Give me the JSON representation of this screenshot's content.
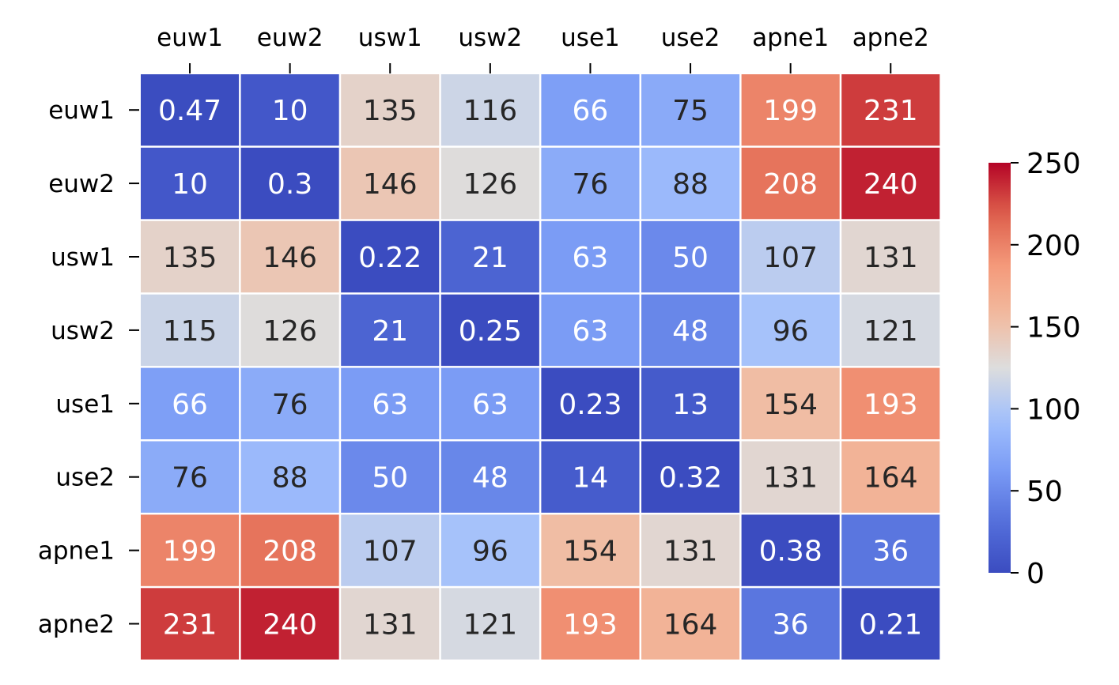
{
  "chart_data": {
    "type": "heatmap",
    "colormap": "coolwarm",
    "x_labels": [
      "euw1",
      "euw2",
      "usw1",
      "usw2",
      "use1",
      "use2",
      "apne1",
      "apne2"
    ],
    "y_labels": [
      "euw1",
      "euw2",
      "usw1",
      "usw2",
      "use1",
      "use2",
      "apne1",
      "apne2"
    ],
    "x_labels_position": "top",
    "values": [
      [
        0.47,
        10,
        135,
        116,
        66,
        75,
        199,
        231
      ],
      [
        10,
        0.3,
        146,
        126,
        76,
        88,
        208,
        240
      ],
      [
        135,
        146,
        0.22,
        21,
        63,
        50,
        107,
        131
      ],
      [
        115,
        126,
        21,
        0.25,
        63,
        48,
        96,
        121
      ],
      [
        66,
        76,
        63,
        63,
        0.23,
        13,
        154,
        193
      ],
      [
        76,
        88,
        50,
        48,
        14,
        0.32,
        131,
        164
      ],
      [
        199,
        208,
        107,
        96,
        154,
        131,
        0.38,
        36
      ],
      [
        231,
        240,
        131,
        121,
        193,
        164,
        36,
        0.21
      ]
    ],
    "cell_labels": [
      [
        "0.47",
        "10",
        "135",
        "116",
        "66",
        "75",
        "199",
        "231"
      ],
      [
        "10",
        "0.3",
        "146",
        "126",
        "76",
        "88",
        "208",
        "240"
      ],
      [
        "135",
        "146",
        "0.22",
        "21",
        "63",
        "50",
        "107",
        "131"
      ],
      [
        "115",
        "126",
        "21",
        "0.25",
        "63",
        "48",
        "96",
        "121"
      ],
      [
        "66",
        "76",
        "63",
        "63",
        "0.23",
        "13",
        "154",
        "193"
      ],
      [
        "76",
        "88",
        "50",
        "48",
        "14",
        "0.32",
        "131",
        "164"
      ],
      [
        "199",
        "208",
        "107",
        "96",
        "154",
        "131",
        "0.38",
        "36"
      ],
      [
        "231",
        "240",
        "131",
        "121",
        "193",
        "164",
        "36",
        "0.21"
      ]
    ],
    "vmin": 0,
    "vmax": 250,
    "colorbar_ticks": [
      0,
      50,
      100,
      150,
      200,
      250
    ],
    "colorbar_position": "right",
    "grid": false,
    "title": "",
    "xlabel": "",
    "ylabel": ""
  }
}
